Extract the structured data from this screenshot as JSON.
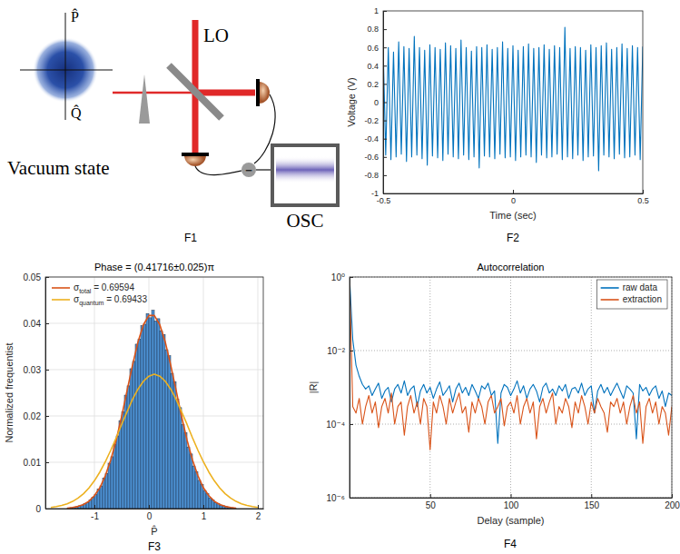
{
  "diagram": {
    "label": "F1",
    "p_axis": "P̂",
    "q_axis": "Q̂",
    "state": "Vacuum state",
    "lo": "LO",
    "subtract": "−",
    "osc": "OSC"
  },
  "chart_data": [
    {
      "panel_label": "F2",
      "type": "line",
      "x_label": "Time (sec)",
      "y_label": "Voltage (V)",
      "color": "#0072bd",
      "x": [
        -0.5,
        -0.49,
        -0.48,
        -0.47,
        -0.46,
        -0.45,
        -0.44,
        -0.43,
        -0.42,
        -0.41,
        -0.4,
        -0.39,
        -0.38,
        -0.37,
        -0.36,
        -0.35,
        -0.34,
        -0.33,
        -0.32,
        -0.31,
        -0.3,
        -0.29,
        -0.28,
        -0.27,
        -0.26,
        -0.25,
        -0.24,
        -0.23,
        -0.22,
        -0.21,
        -0.2,
        -0.19,
        -0.18,
        -0.17,
        -0.16,
        -0.15,
        -0.14,
        -0.13,
        -0.12,
        -0.11,
        -0.1,
        -0.09,
        -0.08,
        -0.07,
        -0.06,
        -0.05,
        -0.04,
        -0.03,
        -0.02,
        -0.01,
        0,
        0.01,
        0.02,
        0.03,
        0.04,
        0.05,
        0.06,
        0.07,
        0.08,
        0.09,
        0.1,
        0.11,
        0.12,
        0.13,
        0.14,
        0.15,
        0.16,
        0.17,
        0.18,
        0.19,
        0.2,
        0.21,
        0.22,
        0.23,
        0.24,
        0.25,
        0.26,
        0.27,
        0.28,
        0.29,
        0.3,
        0.31,
        0.32,
        0.33,
        0.34,
        0.35,
        0.36,
        0.37,
        0.38,
        0.39,
        0.4,
        0.41,
        0.42,
        0.43,
        0.44,
        0.45,
        0.46,
        0.47,
        0.48,
        0.49,
        0.5
      ],
      "values": [
        0.62,
        -0.58,
        0.6,
        -0.63,
        0.55,
        -0.6,
        0.66,
        -0.57,
        0.61,
        -0.65,
        0.59,
        -0.6,
        0.72,
        -0.58,
        0.6,
        -0.62,
        0.57,
        -0.69,
        0.63,
        -0.59,
        0.6,
        -0.61,
        0.58,
        -0.64,
        0.65,
        -0.57,
        0.62,
        -0.6,
        0.59,
        -0.62,
        0.68,
        -0.58,
        0.6,
        -0.63,
        0.56,
        -0.6,
        0.61,
        -0.72,
        0.6,
        -0.59,
        0.63,
        -0.6,
        0.58,
        -0.62,
        0.6,
        -0.57,
        0.66,
        -0.61,
        0.59,
        -0.6,
        0.62,
        -0.64,
        0.57,
        -0.6,
        0.61,
        -0.58,
        0.64,
        -0.6,
        0.59,
        -0.66,
        0.6,
        -0.58,
        0.63,
        -0.61,
        0.58,
        -0.6,
        0.62,
        -0.57,
        0.6,
        -0.63,
        0.82,
        -0.6,
        0.59,
        -0.62,
        0.61,
        -0.58,
        0.6,
        -0.64,
        0.57,
        -0.6,
        0.63,
        -0.59,
        0.6,
        -0.75,
        0.62,
        -0.58,
        0.65,
        -0.6,
        0.58,
        -0.62,
        0.6,
        -0.57,
        0.64,
        -0.61,
        0.59,
        -0.6,
        0.62,
        -0.58,
        0.6,
        -0.63,
        0.61
      ],
      "xlim": [
        -0.5,
        0.5
      ],
      "xticks": [
        -0.5,
        0,
        0.5
      ],
      "ylim": [
        -1,
        1
      ],
      "yticks": [
        -1,
        -0.8,
        -0.6,
        -0.4,
        -0.2,
        0,
        0.2,
        0.4,
        0.6,
        0.8,
        1
      ],
      "grid": false
    },
    {
      "panel_label": "F3",
      "type": "histogram",
      "title": "Phase = (0.41716±0.025)π",
      "x_label": "P̂",
      "y_label": "Normalized frequentist",
      "color": "#4d93d6",
      "bins": [
        -1.5,
        -1.45,
        -1.4,
        -1.35,
        -1.3,
        -1.25,
        -1.2,
        -1.15,
        -1.1,
        -1.05,
        -1,
        -0.95,
        -0.9,
        -0.85,
        -0.8,
        -0.75,
        -0.7,
        -0.65,
        -0.6,
        -0.55,
        -0.5,
        -0.45,
        -0.4,
        -0.35,
        -0.3,
        -0.25,
        -0.2,
        -0.15,
        -0.1,
        -0.05,
        0,
        0.05,
        0.1,
        0.15,
        0.2,
        0.25,
        0.3,
        0.35,
        0.4,
        0.45,
        0.5,
        0.55,
        0.6,
        0.65,
        0.7,
        0.75,
        0.8,
        0.85,
        0.9,
        0.95,
        1,
        1.05,
        1.1,
        1.15,
        1.2,
        1.25,
        1.3,
        1.35,
        1.4,
        1.45,
        1.5,
        1.55,
        1.6
      ],
      "values": [
        0.0001,
        0.0002,
        0.0003,
        0.0004,
        0.0006,
        0.0007,
        0.0011,
        0.0013,
        0.0019,
        0.0025,
        0.003,
        0.0042,
        0.0049,
        0.0066,
        0.0076,
        0.0098,
        0.0112,
        0.0139,
        0.0157,
        0.019,
        0.0209,
        0.0245,
        0.0265,
        0.0302,
        0.0318,
        0.0355,
        0.0366,
        0.0395,
        0.0398,
        0.0421,
        0.0412,
        0.0428,
        0.0405,
        0.041,
        0.0384,
        0.0376,
        0.0343,
        0.033,
        0.0292,
        0.0274,
        0.0236,
        0.0218,
        0.0181,
        0.0164,
        0.0133,
        0.0118,
        0.0092,
        0.008,
        0.0061,
        0.0052,
        0.0039,
        0.0032,
        0.0023,
        0.0019,
        0.0013,
        0.0011,
        0.0007,
        0.0006,
        0.0004,
        0.0003,
        0.0002,
        0.0001
      ],
      "series": [
        {
          "name": "σtotal = 0.69594",
          "type": "line",
          "color": "#d95319",
          "x": [
            -1.5,
            -1.4,
            -1.3,
            -1.2,
            -1.1,
            -1,
            -0.9,
            -0.8,
            -0.7,
            -0.6,
            -0.5,
            -0.4,
            -0.3,
            -0.2,
            -0.1,
            0,
            0.1,
            0.2,
            0.3,
            0.4,
            0.5,
            0.6,
            0.7,
            0.8,
            0.9,
            1,
            1.1,
            1.2,
            1.3,
            1.4,
            1.5,
            1.6
          ],
          "values": [
            0.0001,
            0.00023,
            0.00047,
            0.00089,
            0.0016,
            0.0028,
            0.0045,
            0.0071,
            0.0105,
            0.0148,
            0.0199,
            0.0255,
            0.031,
            0.036,
            0.0397,
            0.0417,
            0.0417,
            0.0397,
            0.036,
            0.031,
            0.0255,
            0.0199,
            0.0148,
            0.0105,
            0.0071,
            0.0045,
            0.0028,
            0.0016,
            0.00089,
            0.00047,
            0.00023,
            0.0001
          ]
        },
        {
          "name": "σquantum = 0.69433",
          "type": "line",
          "color": "#edb120",
          "x": [
            -1.8,
            -1.7,
            -1.6,
            -1.5,
            -1.4,
            -1.3,
            -1.2,
            -1.1,
            -1,
            -0.9,
            -0.8,
            -0.7,
            -0.6,
            -0.5,
            -0.4,
            -0.3,
            -0.2,
            -0.1,
            0,
            0.1,
            0.2,
            0.3,
            0.4,
            0.5,
            0.6,
            0.7,
            0.8,
            0.9,
            1,
            1.1,
            1.2,
            1.3,
            1.4,
            1.5,
            1.6,
            1.7,
            1.8,
            1.9,
            2
          ],
          "values": [
            0.00026,
            0.00043,
            0.00068,
            0.00104,
            0.00155,
            0.00227,
            0.00322,
            0.00446,
            0.00601,
            0.0079,
            0.0101,
            0.0126,
            0.0153,
            0.0182,
            0.0209,
            0.0236,
            0.0258,
            0.0275,
            0.0286,
            0.029,
            0.0286,
            0.0275,
            0.0258,
            0.0236,
            0.0209,
            0.0182,
            0.0153,
            0.0126,
            0.0101,
            0.0079,
            0.00601,
            0.00446,
            0.00322,
            0.00227,
            0.00155,
            0.00104,
            0.00068,
            0.00043,
            0.00026
          ]
        }
      ],
      "xlim": [
        -1.9,
        2.1
      ],
      "xticks": [
        -1,
        0,
        1,
        2
      ],
      "ylim": [
        0,
        0.05
      ],
      "yticks": [
        0,
        0.01,
        0.02,
        0.03,
        0.04,
        0.05
      ],
      "grid": true,
      "legend": "upper left"
    },
    {
      "panel_label": "F4",
      "type": "line",
      "title": "Autocorrelation",
      "x_label": "Delay (sample)",
      "y_label": "|R|",
      "log": "y",
      "x": [
        0,
        2,
        4,
        6,
        8,
        10,
        12,
        14,
        16,
        18,
        20,
        22,
        24,
        26,
        28,
        30,
        32,
        34,
        36,
        38,
        40,
        42,
        44,
        46,
        48,
        50,
        52,
        54,
        56,
        58,
        60,
        62,
        64,
        66,
        68,
        70,
        72,
        74,
        76,
        78,
        80,
        82,
        84,
        86,
        88,
        90,
        92,
        94,
        96,
        98,
        100,
        102,
        104,
        106,
        108,
        110,
        112,
        114,
        116,
        118,
        120,
        122,
        124,
        126,
        128,
        130,
        132,
        134,
        136,
        138,
        140,
        142,
        144,
        146,
        148,
        150,
        152,
        154,
        156,
        158,
        160,
        162,
        164,
        166,
        168,
        170,
        172,
        174,
        176,
        178,
        180,
        182,
        184,
        186,
        188,
        190,
        192,
        194,
        196,
        198,
        200
      ],
      "series": [
        {
          "name": "raw data",
          "color": "#0072bd",
          "values": [
            1,
            0.02,
            0.004,
            0.002,
            0.0012,
            0.0009,
            0.0011,
            0.0006,
            0.0009,
            0.0013,
            0.0005,
            0.0008,
            0.001,
            0.0004,
            0.0009,
            0.0012,
            0.0007,
            0.0015,
            0.0006,
            0.0009,
            0.0011,
            0.0003,
            0.0008,
            0.0012,
            0.0007,
            0.001,
            0.0005,
            0.0009,
            0.0014,
            0.0006,
            0.0008,
            0.0011,
            0.0004,
            0.0009,
            0.0013,
            0.0007,
            0.001,
            0.0006,
            0.0012,
            0.0008,
            0.0005,
            0.0011,
            0.0009,
            0.0013,
            0.0006,
            0.0008,
            3e-05,
            0.0007,
            0.0012,
            0.001,
            0.0006,
            0.0009,
            0.0015,
            0.0007,
            0.0011,
            0.0005,
            0.0009,
            0.0012,
            0.0008,
            0.0004,
            0.001,
            0.0013,
            0.0007,
            0.0009,
            0.0006,
            0.0011,
            0.0008,
            0.0012,
            0.0005,
            0.0009,
            0.001,
            0.0007,
            0.0013,
            0.0006,
            0.0009,
            0.0011,
            0.0002,
            0.0008,
            0.0012,
            0.0007,
            0.001,
            0.0006,
            0.0009,
            0.0013,
            0.0008,
            0.0005,
            0.0011,
            0.0009,
            0.0007,
            4e-05,
            0.0012,
            0.0008,
            0.001,
            0.0006,
            0.0009,
            0.0011,
            0.0005,
            0.0008,
            0.0003,
            0.0007,
            0.0006
          ]
        },
        {
          "name": "extraction",
          "color": "#d95319",
          "values": [
            1,
            0.0003,
            0.0002,
            0.0005,
            0.0001,
            0.0003,
            0.0006,
            0.0002,
            0.0004,
            8e-05,
            0.0003,
            0.0005,
            0.0002,
            0.0007,
            0.0001,
            0.0003,
            0.0004,
            5e-05,
            0.0003,
            0.0006,
            0.0002,
            0.0004,
            0.0001,
            0.0005,
            0.0003,
            2e-05,
            0.0004,
            0.0002,
            0.0006,
            0.0003,
            0.0001,
            0.0005,
            0.0002,
            0.0004,
            0.0007,
            0.0002,
            0.0003,
            6e-05,
            0.0004,
            0.0002,
            0.0005,
            0.0003,
            0.0001,
            0.0004,
            0.0006,
            0.0002,
            0.0003,
            0.0005,
            9e-05,
            0.0003,
            0.0004,
            0.0002,
            0.0006,
            0.0001,
            0.0003,
            0.0005,
            0.0002,
            0.0004,
            4e-05,
            0.0003,
            0.0005,
            0.0002,
            0.0004,
            0.0007,
            0.0001,
            0.0003,
            0.0002,
            0.0005,
            0.0003,
            8e-05,
            0.0004,
            0.0002,
            0.0006,
            0.0003,
            0.0001,
            0.0004,
            0.0002,
            0.0005,
            0.0003,
            0.0002,
            6e-05,
            0.0004,
            0.0003,
            0.0005,
            0.0002,
            0.0004,
            0.0001,
            0.0003,
            0.0006,
            0.0002,
            0.0004,
            3e-05,
            0.0003,
            0.0005,
            0.0002,
            0.0004,
            0.0001,
            0.0003,
            0.0002,
            5e-05,
            0.0003
          ]
        }
      ],
      "xlim": [
        0,
        200
      ],
      "xticks": [
        50,
        100,
        150,
        200
      ],
      "ylim": [
        1e-06,
        1
      ],
      "yticks": [
        {
          "value": 1,
          "label": "10⁰"
        },
        {
          "value": 0.01,
          "label": "10⁻²"
        },
        {
          "value": 0.0001,
          "label": "10⁻⁴"
        },
        {
          "value": 1e-06,
          "label": "10⁻⁶"
        }
      ],
      "grid": true,
      "legend": "upper right"
    }
  ]
}
